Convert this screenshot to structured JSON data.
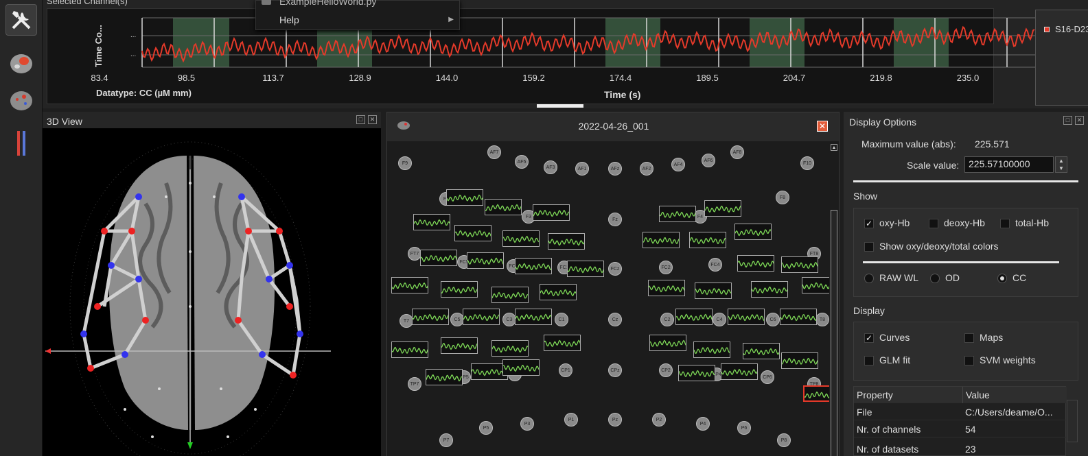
{
  "timeseries": {
    "title": "Selected Channel(s)",
    "ylabel": "Time Co...",
    "datatype": "Datatype: CC (µM mm)",
    "xlabel": "Time (s)",
    "xticks": [
      "83.4",
      "98.5",
      "113.7",
      "128.9",
      "144.0",
      "159.2",
      "174.4",
      "189.5",
      "204.7",
      "219.8",
      "235.0"
    ],
    "legend": "S16-D23",
    "line_color": "#e53a2a",
    "block_color": "#34503a"
  },
  "menu": {
    "item1": "ExampleHelloWorld.py",
    "item2": "Help"
  },
  "view3d": {
    "title": "3D View"
  },
  "view2d": {
    "title": "2022-04-26_001",
    "optodes": [
      "F9",
      "AF7",
      "AF5",
      "AF3",
      "AF1",
      "AFz",
      "AF2",
      "AF4",
      "AF6",
      "AF8",
      "F10",
      "F7",
      "F8",
      "F3",
      "Fz",
      "F4",
      "FT7",
      "FC5",
      "FC3",
      "FC1",
      "FCz",
      "FC2",
      "FC4",
      "FC6",
      "FT8",
      "T7",
      "C5",
      "C3",
      "C1",
      "Cz",
      "C2",
      "C4",
      "C6",
      "T8",
      "TP7",
      "CP5",
      "CP3",
      "CP1",
      "CPz",
      "CP2",
      "CP4",
      "CP6",
      "TP8",
      "P7",
      "P5",
      "P3",
      "P1",
      "Pz",
      "P2",
      "P4",
      "P6",
      "P8"
    ]
  },
  "display_options": {
    "title": "Display Options",
    "max_label": "Maximum value (abs):",
    "max_value": "225.571",
    "scale_label": "Scale value:",
    "scale_value": "225.57100000",
    "show_title": "Show",
    "show": {
      "oxy": "oxy-Hb",
      "deoxy": "deoxy-Hb",
      "total": "total-Hb",
      "colors": "Show oxy/deoxy/total colors"
    },
    "types": {
      "raw": "RAW WL",
      "od": "OD",
      "cc": "CC"
    },
    "display_title": "Display",
    "display": {
      "curves": "Curves",
      "maps": "Maps",
      "glm": "GLM fit",
      "svm": "SVM weights"
    },
    "table": {
      "headers": [
        "Property",
        "Value"
      ],
      "rows": [
        [
          "File",
          "C:/Users/deame/O..."
        ],
        [
          "Nr. of channels",
          "54"
        ],
        [
          "Nr. of datasets",
          "23"
        ]
      ]
    }
  }
}
